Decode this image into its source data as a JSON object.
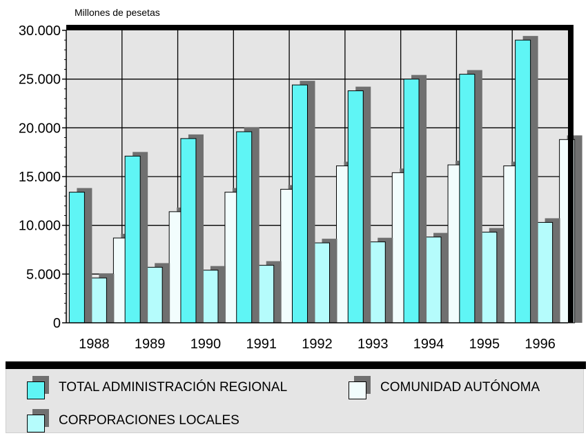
{
  "chart_data": {
    "type": "bar",
    "unit_label": "Millones de pesetas",
    "categories": [
      "1988",
      "1989",
      "1990",
      "1991",
      "1992",
      "1993",
      "1994",
      "1995",
      "1996"
    ],
    "series": [
      {
        "name": "TOTAL ADMINISTRACIÓN REGIONAL",
        "color": "#5ff5f5",
        "values": [
          13400,
          17100,
          18900,
          19600,
          24400,
          23800,
          25000,
          25500,
          29000
        ]
      },
      {
        "name": "CORPORACIONES LOCALES",
        "color": "#b5fcfc",
        "values": [
          4600,
          5700,
          5400,
          5900,
          8200,
          8300,
          8800,
          9300,
          10300
        ]
      },
      {
        "name": "COMUNIDAD AUTÓNOMA",
        "color": "#f2fdfd",
        "values": [
          8700,
          11400,
          13400,
          13700,
          16100,
          15400,
          16200,
          16100,
          18800
        ]
      }
    ],
    "ylim": [
      0,
      30000
    ],
    "yticks": [
      0,
      5000,
      10000,
      15000,
      20000,
      25000,
      30000
    ],
    "ytick_labels": [
      "0",
      "5.000",
      "10.000",
      "15.000",
      "20.000",
      "25.000",
      "30.000"
    ],
    "grid": true,
    "legend_position": "bottom",
    "plot_background": "#e5e5e5",
    "shadow_color": "#707070"
  },
  "legend": {
    "items": [
      {
        "label": "TOTAL ADMINISTRACIÓN REGIONAL",
        "color": "#5ff5f5"
      },
      {
        "label": "COMUNIDAD AUTÓNOMA",
        "color": "#f2fdfd"
      },
      {
        "label": "CORPORACIONES LOCALES",
        "color": "#b5fcfc"
      }
    ]
  }
}
